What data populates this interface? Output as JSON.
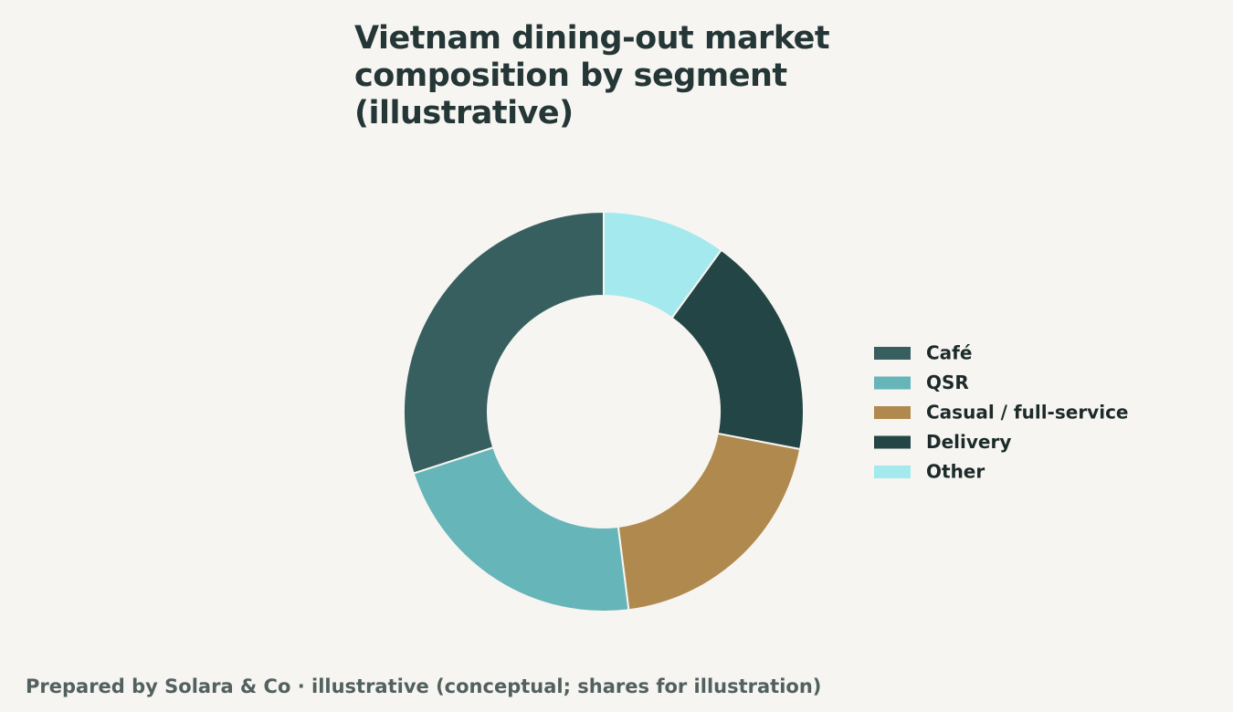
{
  "chart_data": {
    "type": "donut",
    "title": "Vietnam dining-out market composition by segment (illustrative)",
    "categories": [
      "Café",
      "QSR",
      "Casual / full-service",
      "Delivery",
      "Other"
    ],
    "values": [
      30,
      22,
      20,
      18,
      10
    ],
    "colors": [
      "#375f5f",
      "#66b5b9",
      "#b0894f",
      "#234545",
      "#a3e9ed"
    ],
    "footer": "Prepared by Solara & Co · illustrative (conceptual; shares for illustration)"
  }
}
